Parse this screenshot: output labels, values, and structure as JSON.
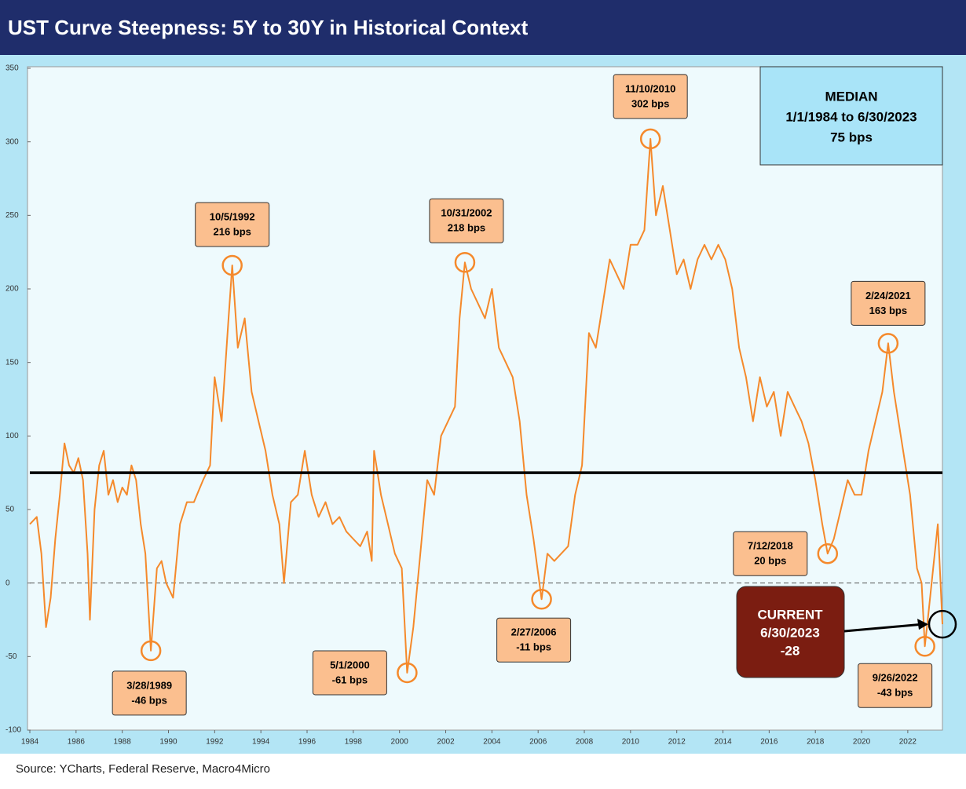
{
  "chart_data": {
    "type": "line",
    "title": "UST Curve Steepness: 5Y to 30Y in Historical Context",
    "source": "Source: YCharts, Federal Reserve, Macro4Micro",
    "color": "#f5892b",
    "xlim": [
      1984,
      2023.5
    ],
    "xticks": [
      1984,
      1986,
      1988,
      1990,
      1992,
      1994,
      1996,
      1998,
      2000,
      2002,
      2004,
      2006,
      2008,
      2010,
      2012,
      2014,
      2016,
      2018,
      2020,
      2022
    ],
    "ylim": [
      -100,
      350
    ],
    "yticks": [
      -100,
      -50,
      0,
      50,
      100,
      150,
      200,
      250,
      300,
      350
    ],
    "reference_line": 0,
    "x": [
      1984.0,
      1984.3,
      1984.5,
      1984.7,
      1984.9,
      1985.1,
      1985.3,
      1985.5,
      1985.7,
      1985.9,
      1986.1,
      1986.3,
      1986.5,
      1986.6,
      1986.8,
      1987.0,
      1987.2,
      1987.4,
      1987.6,
      1987.8,
      1988.0,
      1988.2,
      1988.4,
      1988.6,
      1988.8,
      1989.0,
      1989.24,
      1989.5,
      1989.7,
      1989.9,
      1990.2,
      1990.5,
      1990.8,
      1991.1,
      1991.5,
      1991.8,
      1992.0,
      1992.3,
      1992.6,
      1992.76,
      1993.0,
      1993.3,
      1993.6,
      1993.9,
      1994.2,
      1994.5,
      1994.8,
      1995.0,
      1995.3,
      1995.6,
      1995.9,
      1996.2,
      1996.5,
      1996.8,
      1997.1,
      1997.4,
      1997.7,
      1998.0,
      1998.3,
      1998.6,
      1998.8,
      1998.9,
      1999.2,
      1999.5,
      1999.8,
      2000.1,
      2000.33,
      2000.6,
      2000.9,
      2001.2,
      2001.5,
      2001.8,
      2002.1,
      2002.4,
      2002.6,
      2002.83,
      2003.1,
      2003.4,
      2003.7,
      2004.0,
      2004.3,
      2004.6,
      2004.9,
      2005.2,
      2005.5,
      2005.8,
      2006.15,
      2006.4,
      2006.7,
      2007.0,
      2007.3,
      2007.6,
      2007.9,
      2008.2,
      2008.5,
      2008.8,
      2009.1,
      2009.4,
      2009.7,
      2010.0,
      2010.3,
      2010.6,
      2010.86,
      2011.1,
      2011.4,
      2011.7,
      2012.0,
      2012.3,
      2012.6,
      2012.9,
      2013.2,
      2013.5,
      2013.8,
      2014.1,
      2014.4,
      2014.7,
      2015.0,
      2015.3,
      2015.6,
      2015.9,
      2016.2,
      2016.5,
      2016.8,
      2017.1,
      2017.4,
      2017.7,
      2018.0,
      2018.3,
      2018.53,
      2018.8,
      2019.1,
      2019.4,
      2019.7,
      2020.0,
      2020.3,
      2020.6,
      2020.9,
      2021.15,
      2021.4,
      2021.7,
      2021.9,
      2022.1,
      2022.4,
      2022.6,
      2022.74,
      2022.9,
      2023.1,
      2023.3,
      2023.5
    ],
    "values": [
      40,
      45,
      20,
      -30,
      -10,
      30,
      60,
      95,
      80,
      75,
      85,
      70,
      20,
      -25,
      50,
      80,
      90,
      60,
      70,
      55,
      65,
      60,
      80,
      70,
      40,
      20,
      -46,
      10,
      15,
      0,
      -10,
      40,
      55,
      55,
      70,
      80,
      140,
      110,
      180,
      216,
      160,
      180,
      130,
      110,
      90,
      60,
      40,
      0,
      55,
      60,
      90,
      60,
      45,
      55,
      40,
      45,
      35,
      30,
      25,
      35,
      15,
      90,
      60,
      40,
      20,
      10,
      -61,
      -30,
      20,
      70,
      60,
      100,
      110,
      120,
      180,
      218,
      200,
      190,
      180,
      200,
      160,
      150,
      140,
      110,
      60,
      30,
      -11,
      20,
      15,
      20,
      25,
      60,
      80,
      170,
      160,
      190,
      220,
      210,
      200,
      230,
      230,
      240,
      302,
      250,
      270,
      240,
      210,
      220,
      200,
      220,
      230,
      220,
      230,
      220,
      200,
      160,
      140,
      110,
      140,
      120,
      130,
      100,
      130,
      120,
      110,
      95,
      70,
      40,
      20,
      30,
      50,
      70,
      60,
      60,
      90,
      110,
      130,
      163,
      130,
      100,
      80,
      60,
      10,
      0,
      -43,
      -20,
      10,
      40,
      -28
    ],
    "annotations": [
      {
        "date": "3/28/1989",
        "label": "-46 bps",
        "value": -46,
        "x": 1989.24
      },
      {
        "date": "10/5/1992",
        "label": "216 bps",
        "value": 216,
        "x": 1992.76
      },
      {
        "date": "5/1/2000",
        "label": "-61 bps",
        "value": -61,
        "x": 2000.33
      },
      {
        "date": "10/31/2002",
        "label": "218 bps",
        "value": 218,
        "x": 2002.83
      },
      {
        "date": "2/27/2006",
        "label": "-11 bps",
        "value": -11,
        "x": 2006.15
      },
      {
        "date": "11/10/2010",
        "label": "302 bps",
        "value": 302,
        "x": 2010.86
      },
      {
        "date": "7/12/2018",
        "label": "20 bps",
        "value": 20,
        "x": 2018.53
      },
      {
        "date": "2/24/2021",
        "label": "163 bps",
        "value": 163,
        "x": 2021.15
      },
      {
        "date": "9/26/2022",
        "label": "-43 bps",
        "value": -43,
        "x": 2022.74
      }
    ],
    "median": {
      "title": "MEDIAN",
      "range": "1/1/1984 to 6/30/2023",
      "label": "75 bps",
      "value": 75
    },
    "current": {
      "title": "CURRENT",
      "date": "6/30/2023",
      "value": -28,
      "x": 2023.5
    }
  }
}
